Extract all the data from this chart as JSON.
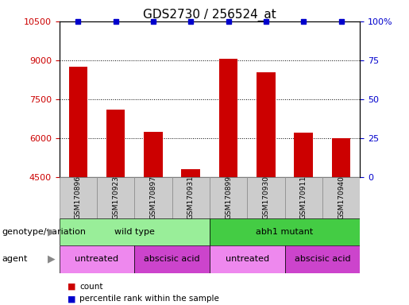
{
  "title": "GDS2730 / 256524_at",
  "samples": [
    "GSM170896",
    "GSM170923",
    "GSM170897",
    "GSM170931",
    "GSM170899",
    "GSM170930",
    "GSM170911",
    "GSM170940"
  ],
  "counts": [
    8750,
    7100,
    6250,
    4800,
    9050,
    8550,
    6200,
    6000
  ],
  "percentile_ranks": [
    100,
    100,
    100,
    100,
    100,
    100,
    100,
    100
  ],
  "ylim_left": [
    4500,
    10500
  ],
  "ylim_right": [
    0,
    100
  ],
  "yticks_left": [
    4500,
    6000,
    7500,
    9000,
    10500
  ],
  "yticks_right": [
    0,
    25,
    50,
    75,
    100
  ],
  "bar_color": "#cc0000",
  "dot_color": "#0000cc",
  "bar_width": 0.5,
  "genotype_groups": [
    {
      "label": "wild type",
      "span": [
        0,
        4
      ],
      "color": "#99ee99"
    },
    {
      "label": "abh1 mutant",
      "span": [
        4,
        8
      ],
      "color": "#44cc44"
    }
  ],
  "agent_groups": [
    {
      "label": "untreated",
      "span": [
        0,
        2
      ],
      "color": "#ee88ee"
    },
    {
      "label": "abscisic acid",
      "span": [
        2,
        4
      ],
      "color": "#cc44cc"
    },
    {
      "label": "untreated",
      "span": [
        4,
        6
      ],
      "color": "#ee88ee"
    },
    {
      "label": "abscisic acid",
      "span": [
        6,
        8
      ],
      "color": "#cc44cc"
    }
  ],
  "left_tick_color": "#cc0000",
  "right_tick_color": "#0000cc",
  "title_fontsize": 11,
  "sample_label_fontsize": 6.5,
  "group_label_fontsize": 8,
  "legend_fontsize": 7.5,
  "row_label_fontsize": 8,
  "sample_box_color": "#cccccc",
  "sample_box_edge": "#888888"
}
